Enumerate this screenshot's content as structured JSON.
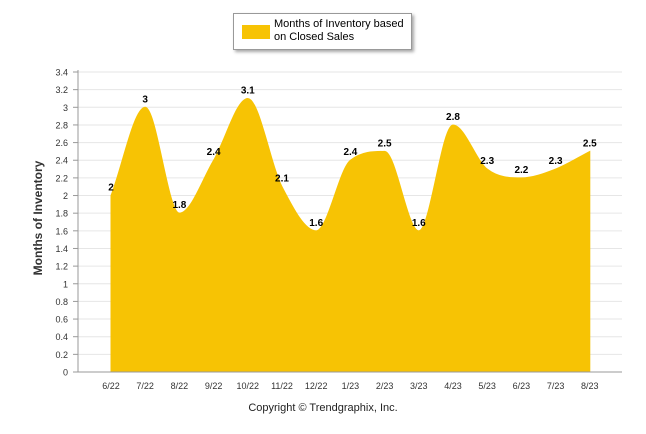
{
  "chart_data": {
    "type": "area",
    "categories": [
      "6/22",
      "7/22",
      "8/22",
      "9/22",
      "10/22",
      "11/22",
      "12/22",
      "1/23",
      "2/23",
      "3/23",
      "4/23",
      "5/23",
      "6/23",
      "7/23",
      "8/23"
    ],
    "series": [
      {
        "name": "Months of Inventory based on Closed Sales",
        "values": [
          2,
          3,
          1.8,
          2.4,
          3.1,
          2.1,
          1.6,
          2.4,
          2.5,
          1.6,
          2.8,
          2.3,
          2.2,
          2.3,
          2.5
        ],
        "labels": [
          "2",
          "3",
          "1.8",
          "2.4",
          "3.1",
          "2.1",
          "1.6",
          "2.4",
          "2.5",
          "1.6",
          "2.8",
          "2.3",
          "2.2",
          "2.3",
          "2.5"
        ],
        "color": "#F7C304"
      }
    ],
    "yticks": [
      0,
      0.2,
      0.4,
      0.6,
      0.8,
      1,
      1.2,
      1.4,
      1.6,
      1.8,
      2,
      2.2,
      2.4,
      2.6,
      2.8,
      3,
      3.2,
      3.4
    ],
    "ytick_labels": [
      "0",
      "0.2",
      "0.4",
      "0.6",
      "0.8",
      "1",
      "1.2",
      "1.4",
      "1.6",
      "1.8",
      "2",
      "2.2",
      "2.4",
      "2.6",
      "2.8",
      "3",
      "3.2",
      "3.4"
    ],
    "ylim": [
      0,
      3.4
    ],
    "ylabel": "Months of Inventory",
    "xlabel": "",
    "title": "",
    "grid": true,
    "legend": {
      "position": "top-center",
      "label": "Months of Inventory based on Closed Sales"
    }
  },
  "footer": {
    "copyright": "Copyright © Trendgraphix, Inc."
  },
  "colors": {
    "area": "#F7C304",
    "grid": "#E6E6E6",
    "axis": "#999999",
    "label": "#000000"
  }
}
